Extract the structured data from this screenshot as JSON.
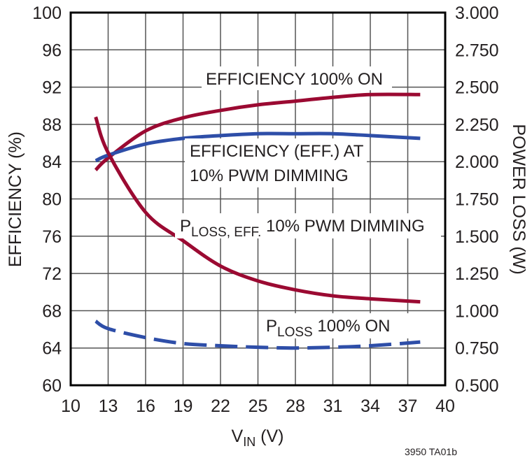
{
  "chart_data": {
    "type": "line",
    "title": "",
    "xlabel": "VIN (V)",
    "xlabel_main": "V",
    "xlabel_sub": "IN",
    "xlabel_unit": " (V)",
    "ylabel": "EFFICIENCY (%)",
    "y2label": "POWER LOSS (W)",
    "xlim": [
      10,
      40
    ],
    "ylim": [
      60,
      100
    ],
    "y2lim": [
      0.5,
      3.0
    ],
    "grid": true,
    "x_ticks": [
      "10",
      "13",
      "16",
      "19",
      "22",
      "25",
      "28",
      "31",
      "34",
      "37",
      "40"
    ],
    "y_ticks": [
      "60",
      "64",
      "68",
      "72",
      "76",
      "80",
      "84",
      "88",
      "92",
      "96",
      "100"
    ],
    "y2_ticks": [
      "0.500",
      "0.750",
      "1.000",
      "1.250",
      "1.500",
      "1.750",
      "2.000",
      "2.250",
      "2.500",
      "2.750",
      "3.000"
    ],
    "x": [
      12,
      13,
      16,
      19,
      22,
      25,
      28,
      31,
      34,
      38
    ],
    "series": [
      {
        "name": "EFFICIENCY 100% ON",
        "axis": "left",
        "color": "#9b0a32",
        "style": "solid",
        "values": [
          83.1,
          84.4,
          87.3,
          88.7,
          89.5,
          90.1,
          90.5,
          90.9,
          91.2,
          91.2
        ]
      },
      {
        "name": "EFFICIENCY (EFF.) AT 10% PWM DIMMING",
        "axis": "left",
        "color": "#2e4ea8",
        "style": "solid",
        "values": [
          84.1,
          84.7,
          85.9,
          86.5,
          86.8,
          87.0,
          87.0,
          87.0,
          86.8,
          86.5
        ]
      },
      {
        "name": "PLOSS, EFF. 10% PWM DIMMING",
        "axis": "right",
        "color": "#9b0a32",
        "style": "solid",
        "values": [
          2.3,
          2.06,
          1.66,
          1.47,
          1.3,
          1.2,
          1.14,
          1.1,
          1.08,
          1.06
        ]
      },
      {
        "name": "PLOSS 100% ON",
        "axis": "right",
        "color": "#2e4ea8",
        "style": "dashed",
        "values": [
          0.93,
          0.88,
          0.82,
          0.78,
          0.765,
          0.755,
          0.75,
          0.755,
          0.765,
          0.79
        ]
      }
    ],
    "annotations": [
      {
        "id": "eff100",
        "text": "EFFICIENCY 100% ON"
      },
      {
        "id": "eff10_line1",
        "text": "EFFICIENCY (EFF.) AT"
      },
      {
        "id": "eff10_line2",
        "text": "10% PWM DIMMING"
      },
      {
        "id": "ploss10_main",
        "text": "P"
      },
      {
        "id": "ploss10_sub",
        "text": "LOSS, EFF."
      },
      {
        "id": "ploss10_rest",
        "text": " 10% PWM DIMMING"
      },
      {
        "id": "ploss100_main",
        "text": "P"
      },
      {
        "id": "ploss100_sub",
        "text": "LOSS"
      },
      {
        "id": "ploss100_rest",
        "text": " 100% ON"
      }
    ],
    "footnote": "3950 TA01b"
  }
}
